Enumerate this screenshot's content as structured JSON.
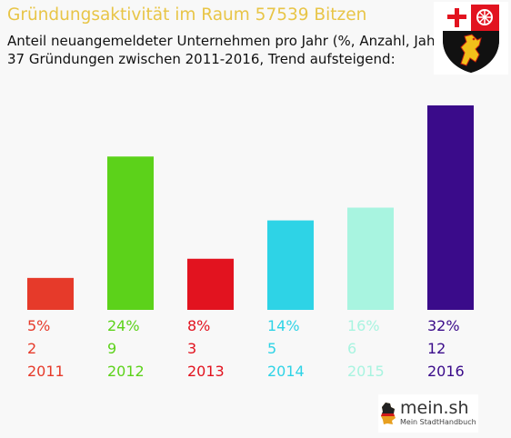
{
  "header": {
    "title": "Gründungsaktivität im Raum 57539 Bitzen",
    "subtitle_line1": "Anteil neuangemeldeter Unternehmen pro Jahr (%, Anzahl, Jahr)",
    "subtitle_line2": "37 Gründungen zwischen 2011-2016, Trend aufsteigend:"
  },
  "crest": {
    "icon": "rhineland-palatinate-coat-of-arms"
  },
  "logo": {
    "main": "mein.sh",
    "sub": "Mein StadtHandbuch",
    "icon": "germany-map-icon"
  },
  "chart_data": {
    "type": "bar",
    "categories": [
      "2011",
      "2012",
      "2013",
      "2014",
      "2015",
      "2016"
    ],
    "values": [
      5,
      24,
      8,
      14,
      16,
      32
    ],
    "value_labels": [
      "5%",
      "24%",
      "8%",
      "14%",
      "16%",
      "32%"
    ],
    "counts": [
      "2",
      "9",
      "3",
      "5",
      "6",
      "12"
    ],
    "colors": [
      "#e63a2a",
      "#5cd21a",
      "#e2131f",
      "#2ed3e6",
      "#a8f4e0",
      "#3a0b8a"
    ],
    "ylim": [
      0,
      32
    ],
    "grid": false,
    "axes_visible": false
  }
}
